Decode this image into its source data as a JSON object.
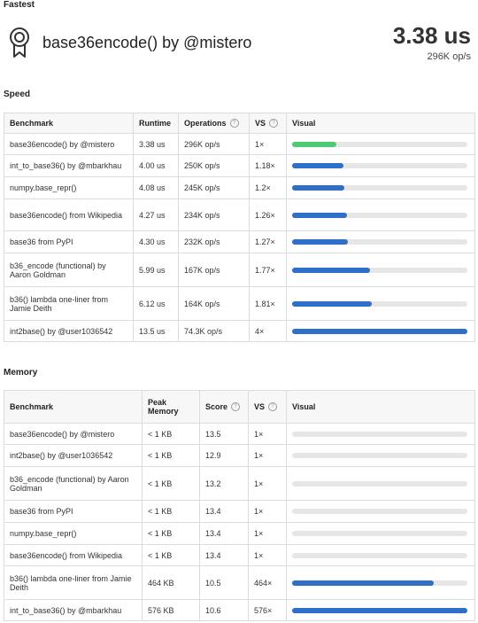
{
  "fastest_label": "Fastest",
  "hero": {
    "title": "base36encode() by @mistero",
    "metric": "3.38 us",
    "sub": "296K op/s",
    "icon": "award-ribbon-icon"
  },
  "colors": {
    "best": "#4ccb72",
    "bar": "#2f6ec9",
    "track": "#e6e6e6"
  },
  "speed": {
    "title": "Speed",
    "headers": {
      "benchmark": "Benchmark",
      "runtime": "Runtime",
      "operations": "Operations",
      "vs": "VS",
      "visual": "Visual"
    },
    "rows": [
      {
        "benchmark": "base36encode() by @mistero",
        "runtime": "3.38 us",
        "operations": "296K op/s",
        "vs": "1×",
        "fraction": 0.25,
        "best": true
      },
      {
        "benchmark": "int_to_base36() by @mbarkhau",
        "runtime": "4.00 us",
        "operations": "250K op/s",
        "vs": "1.18×",
        "fraction": 0.295,
        "best": false
      },
      {
        "benchmark": "numpy.base_repr()",
        "runtime": "4.08 us",
        "operations": "245K op/s",
        "vs": "1.2×",
        "fraction": 0.3,
        "best": false
      },
      {
        "benchmark": "base36encode() from Wikipedia",
        "runtime": "4.27 us",
        "operations": "234K op/s",
        "vs": "1.26×",
        "fraction": 0.315,
        "best": false
      },
      {
        "benchmark": "base36 from PyPI",
        "runtime": "4.30 us",
        "operations": "232K op/s",
        "vs": "1.27×",
        "fraction": 0.318,
        "best": false
      },
      {
        "benchmark": "b36_encode (functional) by Aaron Goldman",
        "runtime": "5.99 us",
        "operations": "167K op/s",
        "vs": "1.77×",
        "fraction": 0.443,
        "best": false
      },
      {
        "benchmark": "b36() lambda one-liner from Jamie Deith",
        "runtime": "6.12 us",
        "operations": "164K op/s",
        "vs": "1.81×",
        "fraction": 0.453,
        "best": false
      },
      {
        "benchmark": "int2base() by @user1036542",
        "runtime": "13.5 us",
        "operations": "74.3K op/s",
        "vs": "4×",
        "fraction": 1.0,
        "best": false
      }
    ]
  },
  "memory": {
    "title": "Memory",
    "headers": {
      "benchmark": "Benchmark",
      "peak": "Peak Memory",
      "score": "Score",
      "vs": "VS",
      "visual": "Visual"
    },
    "rows": [
      {
        "benchmark": "base36encode() by @mistero",
        "peak": "< 1 KB",
        "score": "13.5",
        "vs": "1×",
        "fraction": 0.0
      },
      {
        "benchmark": "int2base() by @user1036542",
        "peak": "< 1 KB",
        "score": "12.9",
        "vs": "1×",
        "fraction": 0.0
      },
      {
        "benchmark": "b36_encode (functional) by Aaron Goldman",
        "peak": "< 1 KB",
        "score": "13.2",
        "vs": "1×",
        "fraction": 0.0
      },
      {
        "benchmark": "base36 from PyPI",
        "peak": "< 1 KB",
        "score": "13.4",
        "vs": "1×",
        "fraction": 0.0
      },
      {
        "benchmark": "numpy.base_repr()",
        "peak": "< 1 KB",
        "score": "13.4",
        "vs": "1×",
        "fraction": 0.0
      },
      {
        "benchmark": "base36encode() from Wikipedia",
        "peak": "< 1 KB",
        "score": "13.4",
        "vs": "1×",
        "fraction": 0.0
      },
      {
        "benchmark": "b36() lambda one-liner from Jamie Deith",
        "peak": "464 KB",
        "score": "10.5",
        "vs": "464×",
        "fraction": 0.806
      },
      {
        "benchmark": "int_to_base36() by @mbarkhau",
        "peak": "576 KB",
        "score": "10.6",
        "vs": "576×",
        "fraction": 1.0
      }
    ]
  }
}
